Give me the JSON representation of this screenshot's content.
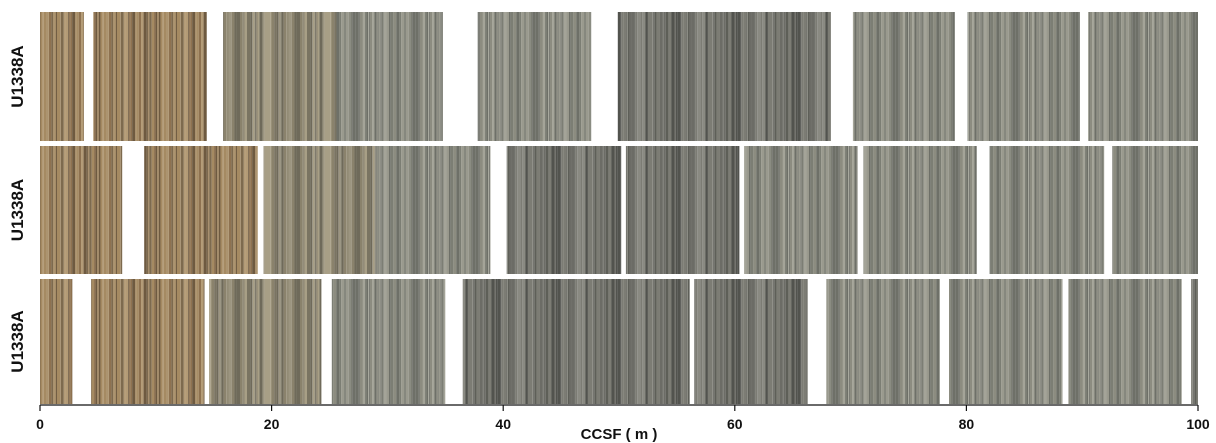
{
  "chart_data": {
    "type": "core-image-strips",
    "title": "",
    "xlabel": "CCSF ( m )",
    "ylabel": "",
    "xlim": [
      0,
      100
    ],
    "xticks": [
      0,
      20,
      40,
      60,
      80,
      100
    ],
    "grid": false,
    "rows": [
      {
        "label": "U1338A",
        "sections": [
          {
            "start": 0.0,
            "end": 3.8,
            "tone": "brown"
          },
          {
            "start": 4.6,
            "end": 14.4,
            "tone": "brown"
          },
          {
            "start": 15.8,
            "end": 25.6,
            "tone": "mixed"
          },
          {
            "start": 25.6,
            "end": 34.8,
            "tone": "grey"
          },
          {
            "start": 37.8,
            "end": 47.6,
            "tone": "grey"
          },
          {
            "start": 49.9,
            "end": 68.3,
            "tone": "dark"
          },
          {
            "start": 70.2,
            "end": 79.0,
            "tone": "grey"
          },
          {
            "start": 80.1,
            "end": 89.8,
            "tone": "grey"
          },
          {
            "start": 90.5,
            "end": 100.0,
            "tone": "grey"
          }
        ]
      },
      {
        "label": "U1338A",
        "sections": [
          {
            "start": 0.0,
            "end": 7.1,
            "tone": "brown"
          },
          {
            "start": 9.0,
            "end": 18.8,
            "tone": "brown"
          },
          {
            "start": 19.3,
            "end": 29.0,
            "tone": "mixed"
          },
          {
            "start": 29.0,
            "end": 38.9,
            "tone": "grey"
          },
          {
            "start": 40.3,
            "end": 50.2,
            "tone": "dark"
          },
          {
            "start": 50.6,
            "end": 60.4,
            "tone": "dark"
          },
          {
            "start": 60.8,
            "end": 70.6,
            "tone": "grey"
          },
          {
            "start": 71.1,
            "end": 80.9,
            "tone": "grey"
          },
          {
            "start": 82.0,
            "end": 91.9,
            "tone": "grey"
          },
          {
            "start": 92.6,
            "end": 100.0,
            "tone": "grey"
          }
        ]
      },
      {
        "label": "U1338A",
        "sections": [
          {
            "start": 0.0,
            "end": 2.8,
            "tone": "brown"
          },
          {
            "start": 4.4,
            "end": 14.2,
            "tone": "brown"
          },
          {
            "start": 14.6,
            "end": 24.3,
            "tone": "mixed"
          },
          {
            "start": 25.2,
            "end": 35.0,
            "tone": "grey"
          },
          {
            "start": 36.5,
            "end": 56.1,
            "tone": "dark"
          },
          {
            "start": 56.5,
            "end": 66.3,
            "tone": "dark"
          },
          {
            "start": 67.9,
            "end": 77.7,
            "tone": "grey"
          },
          {
            "start": 78.5,
            "end": 88.3,
            "tone": "grey"
          },
          {
            "start": 88.8,
            "end": 98.6,
            "tone": "grey"
          },
          {
            "start": 99.4,
            "end": 100.0,
            "tone": "dark"
          }
        ]
      }
    ]
  },
  "colors": {
    "brown": [
      "#8e7250",
      "#a58a62",
      "#6e5a40",
      "#b39b76",
      "#7d6a4e"
    ],
    "mixed": [
      "#8a826c",
      "#9c9580",
      "#6f6a5a",
      "#a89f86",
      "#7a7462"
    ],
    "grey": [
      "#8c8c80",
      "#9a9a8e",
      "#6e7068",
      "#a4a498",
      "#7c7e74"
    ],
    "dark": [
      "#6c6c66",
      "#7c7c74",
      "#52534e",
      "#8a8a82",
      "#5e5f58"
    ],
    "axis": "#111111",
    "background": "#ffffff"
  }
}
